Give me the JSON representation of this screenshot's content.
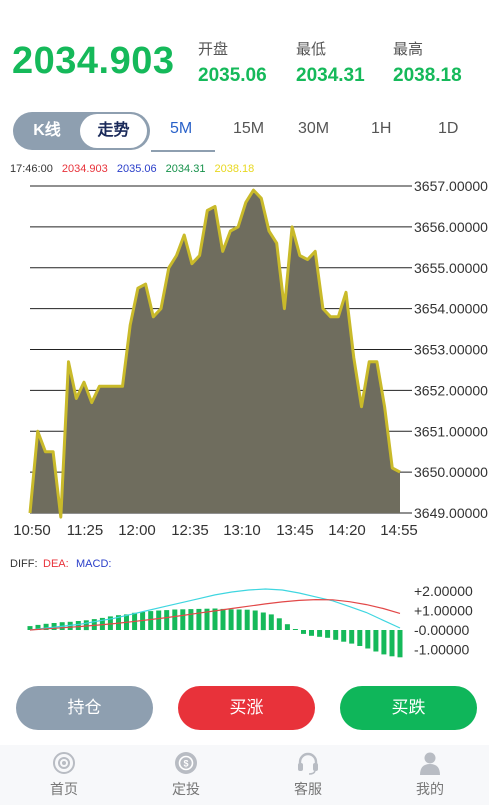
{
  "header": {
    "price": "2034.903",
    "stats": [
      {
        "label": "开盘",
        "value": "2035.06"
      },
      {
        "label": "最低",
        "value": "2034.31"
      },
      {
        "label": "最高",
        "value": "2038.18"
      }
    ]
  },
  "chart_tabs": {
    "kline": "K线",
    "trend": "走势",
    "periods": [
      "5M",
      "15M",
      "30M",
      "1H",
      "1D"
    ],
    "active_period": "5M"
  },
  "legend": {
    "time": "17:46:00",
    "price": "2034.903",
    "open": "2035.06",
    "low": "2034.31",
    "high": "2038.18"
  },
  "colors": {
    "green": "#15b95a",
    "red": "#e8323a",
    "blue": "#2a3ec9",
    "yellow": "#f0e430",
    "area_fill": "#6f6d5e",
    "line": "#c9ba2a",
    "slate": "#8e9fb0"
  },
  "chart_data": [
    {
      "type": "area",
      "x_ticks": [
        "10:50",
        "11:25",
        "12:00",
        "12:35",
        "13:10",
        "13:45",
        "14:20",
        "14:55"
      ],
      "y_ticks": [
        "3657.00000",
        "3656.00000",
        "3655.00000",
        "3654.00000",
        "3653.00000",
        "3652.00000",
        "3651.00000",
        "3650.00000",
        "3649.00000"
      ],
      "ylim": [
        3649,
        3657.6
      ],
      "grid": true,
      "values": [
        3649.0,
        3651.0,
        3650.5,
        3650.5,
        3648.9,
        3652.7,
        3651.8,
        3652.2,
        3651.7,
        3652.1,
        3652.1,
        3652.1,
        3652.1,
        3653.6,
        3654.5,
        3654.6,
        3653.8,
        3654.0,
        3655.0,
        3655.3,
        3655.8,
        3655.1,
        3655.3,
        3656.4,
        3656.5,
        3655.4,
        3655.9,
        3656.0,
        3656.6,
        3656.9,
        3656.7,
        3655.9,
        3655.6,
        3654.0,
        3656.0,
        3655.3,
        3655.2,
        3655.4,
        3654.0,
        3653.8,
        3653.8,
        3654.4,
        3652.8,
        3651.6,
        3652.7,
        3652.7,
        3651.6,
        3650.1,
        3650.0
      ]
    },
    {
      "type": "bar",
      "legend": [
        "DIFF:",
        "DEA:",
        "MACD:"
      ],
      "y_ticks": [
        "+2.00000",
        "+1.00000",
        "-0.00000",
        "-1.00000"
      ],
      "ylim": [
        -1.6,
        2.3
      ],
      "macd": [
        0.2,
        0.26,
        0.32,
        0.36,
        0.4,
        0.42,
        0.46,
        0.5,
        0.56,
        0.62,
        0.7,
        0.76,
        0.8,
        0.88,
        0.93,
        0.97,
        1.0,
        1.02,
        1.05,
        1.06,
        1.07,
        1.08,
        1.09,
        1.1,
        1.08,
        1.06,
        1.05,
        1.04,
        1.0,
        0.9,
        0.8,
        0.6,
        0.3,
        0.05,
        -0.2,
        -0.3,
        -0.35,
        -0.4,
        -0.5,
        -0.6,
        -0.7,
        -0.82,
        -0.95,
        -1.1,
        -1.25,
        -1.35,
        -1.4
      ],
      "diff": [
        0.0,
        0.1,
        0.2,
        0.3,
        0.45,
        0.6,
        0.8,
        1.0,
        1.2,
        1.4,
        1.6,
        1.8,
        1.95,
        2.05,
        2.1,
        2.05,
        1.9,
        1.7,
        1.5,
        1.2,
        0.9,
        0.5,
        0.1
      ],
      "dea": [
        0.0,
        0.06,
        0.12,
        0.18,
        0.25,
        0.33,
        0.42,
        0.52,
        0.62,
        0.74,
        0.86,
        0.98,
        1.1,
        1.22,
        1.34,
        1.44,
        1.52,
        1.56,
        1.55,
        1.45,
        1.3,
        1.1,
        0.85
      ]
    }
  ],
  "actions": {
    "position": "持仓",
    "buy_up": "买涨",
    "buy_down": "买跌"
  },
  "tabbar": [
    {
      "label": "首页",
      "icon": "home-icon"
    },
    {
      "label": "定投",
      "icon": "invest-icon"
    },
    {
      "label": "客服",
      "icon": "headset-icon"
    },
    {
      "label": "我的",
      "icon": "user-icon"
    }
  ]
}
